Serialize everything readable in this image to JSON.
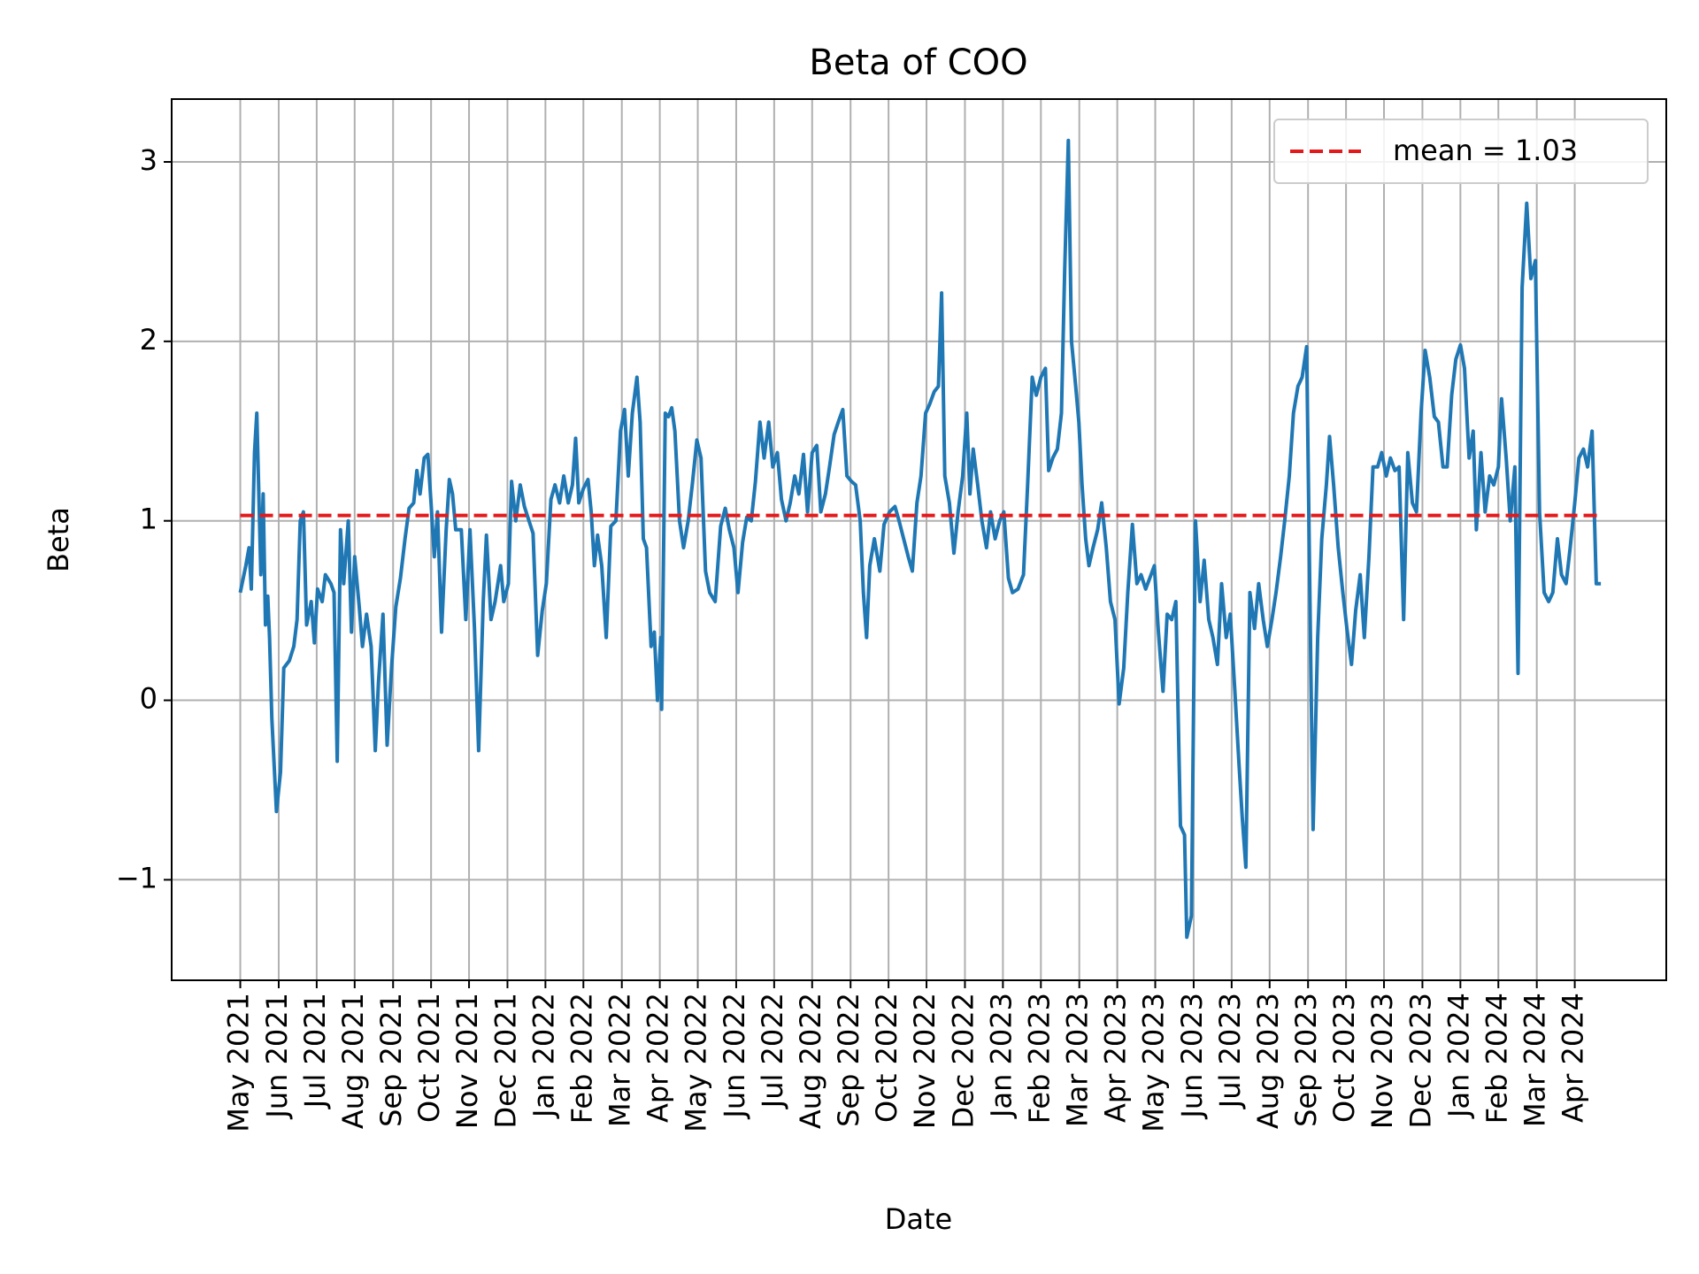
{
  "chart_data": {
    "type": "line",
    "title": "Beta of COO",
    "x_label": "Date",
    "y_label": "Beta",
    "color": "#1f77b4",
    "grid": true,
    "legend": "upper right",
    "x": [
      2021.333,
      2021.345,
      2021.352,
      2021.357,
      2021.364,
      2021.369,
      2021.378,
      2021.383,
      2021.388,
      2021.393,
      2021.397,
      2021.402,
      2021.412,
      2021.421,
      2021.428,
      2021.44,
      2021.45,
      2021.457,
      2021.464,
      2021.471,
      2021.478,
      2021.488,
      2021.495,
      2021.502,
      2021.512,
      2021.519,
      2021.531,
      2021.538,
      2021.545,
      2021.552,
      2021.559,
      2021.569,
      2021.576,
      2021.583,
      2021.593,
      2021.6,
      2021.609,
      2021.619,
      2021.628,
      2021.635,
      2021.645,
      2021.654,
      2021.664,
      2021.673,
      2021.683,
      2021.693,
      2021.702,
      2021.712,
      2021.719,
      2021.726,
      2021.735,
      2021.743,
      2021.75,
      2021.757,
      2021.764,
      2021.773,
      2021.783,
      2021.79,
      2021.797,
      2021.804,
      2021.816,
      2021.826,
      2021.835,
      2021.845,
      2021.854,
      2021.864,
      2021.871,
      2021.881,
      2021.89,
      2021.902,
      2021.909,
      2021.919,
      2021.926,
      2021.935,
      2021.945,
      2021.954,
      2021.964,
      2021.973,
      2021.983,
      2021.993,
      2022.002,
      2022.012,
      2022.021,
      2022.031,
      2022.04,
      2022.05,
      2022.059,
      2022.066,
      2022.073,
      2022.083,
      2022.093,
      2022.1,
      2022.107,
      2022.114,
      2022.123,
      2022.133,
      2022.143,
      2022.154,
      2022.164,
      2022.173,
      2022.181,
      2022.19,
      2022.2,
      2022.207,
      2022.214,
      2022.221,
      2022.231,
      2022.238,
      2022.245,
      2022.252,
      2022.254,
      2022.262,
      2022.269,
      2022.276,
      2022.283,
      2022.293,
      2022.302,
      2022.312,
      2022.321,
      2022.331,
      2022.34,
      2022.35,
      2022.359,
      2022.371,
      2022.383,
      2022.393,
      2022.402,
      2022.412,
      2022.421,
      2022.431,
      2022.44,
      2022.45,
      2022.459,
      2022.469,
      2022.478,
      2022.488,
      2022.497,
      2022.507,
      2022.516,
      2022.526,
      2022.535,
      2022.545,
      2022.554,
      2022.564,
      2022.573,
      2022.583,
      2022.593,
      2022.602,
      2022.612,
      2022.621,
      2022.631,
      2022.64,
      2022.65,
      2022.659,
      2022.669,
      2022.678,
      2022.688,
      2022.695,
      2022.702,
      2022.709,
      2022.719,
      2022.731,
      2022.74,
      2022.752,
      2022.764,
      2022.773,
      2022.783,
      2022.793,
      2022.802,
      2022.812,
      2022.821,
      2022.831,
      2022.84,
      2022.85,
      2022.859,
      2022.866,
      2022.873,
      2022.883,
      2022.893,
      2022.902,
      2022.912,
      2022.921,
      2022.928,
      2022.935,
      2022.945,
      2022.954,
      2022.964,
      2022.973,
      2022.983,
      2022.993,
      2023.002,
      2023.012,
      2023.021,
      2023.033,
      2023.045,
      2023.054,
      2023.064,
      2023.073,
      2023.083,
      2023.093,
      2023.1,
      2023.109,
      2023.119,
      2023.128,
      2023.135,
      2023.143,
      2023.15,
      2023.159,
      2023.166,
      2023.173,
      2023.181,
      2023.188,
      2023.197,
      2023.207,
      2023.216,
      2023.226,
      2023.235,
      2023.245,
      2023.254,
      2023.264,
      2023.273,
      2023.283,
      2023.293,
      2023.302,
      2023.312,
      2023.321,
      2023.331,
      2023.34,
      2023.35,
      2023.359,
      2023.369,
      2023.378,
      2023.388,
      2023.397,
      2023.402,
      2023.412,
      2023.421,
      2023.431,
      2023.44,
      2023.45,
      2023.459,
      2023.469,
      2023.478,
      2023.488,
      2023.497,
      2023.507,
      2023.516,
      2023.523,
      2023.531,
      2023.54,
      2023.55,
      2023.559,
      2023.569,
      2023.578,
      2023.588,
      2023.597,
      2023.607,
      2023.616,
      2023.626,
      2023.635,
      2023.645,
      2023.654,
      2023.664,
      2023.673,
      2023.678,
      2023.688,
      2023.697,
      2023.707,
      2023.714,
      2023.723,
      2023.733,
      2023.743,
      2023.752,
      2023.762,
      2023.771,
      2023.781,
      2023.79,
      2023.8,
      2023.809,
      2023.819,
      2023.828,
      2023.838,
      2023.847,
      2023.857,
      2023.866,
      2023.876,
      2023.885,
      2023.895,
      2023.904,
      2023.914,
      2023.923,
      2023.933,
      2023.943,
      2023.952,
      2023.962,
      2023.971,
      2023.981,
      2023.99,
      2024.0,
      2024.009,
      2024.019,
      2024.028,
      2024.035,
      2024.045,
      2024.054,
      2024.064,
      2024.073,
      2024.083,
      2024.09,
      2024.1,
      2024.109,
      2024.119,
      2024.126,
      2024.135,
      2024.145,
      2024.154,
      2024.164,
      2024.173,
      2024.183,
      2024.193,
      2024.202,
      2024.212,
      2024.221,
      2024.231,
      2024.24,
      2024.25,
      2024.259,
      2024.269,
      2024.278,
      2024.288,
      2024.297,
      2024.307
    ],
    "values": [
      0.6,
      0.75,
      0.85,
      0.62,
      1.38,
      1.6,
      0.7,
      1.15,
      0.42,
      0.58,
      0.35,
      -0.1,
      -0.62,
      -0.4,
      0.18,
      0.22,
      0.3,
      0.45,
      1.0,
      1.05,
      0.42,
      0.55,
      0.32,
      0.62,
      0.55,
      0.7,
      0.65,
      0.6,
      -0.34,
      0.95,
      0.65,
      1.0,
      0.38,
      0.8,
      0.52,
      0.3,
      0.48,
      0.3,
      -0.28,
      0.1,
      0.48,
      -0.25,
      0.2,
      0.52,
      0.68,
      0.9,
      1.07,
      1.1,
      1.28,
      1.15,
      1.35,
      1.37,
      1.1,
      0.8,
      1.05,
      0.38,
      0.95,
      1.23,
      1.15,
      0.95,
      0.95,
      0.45,
      0.95,
      0.4,
      -0.28,
      0.55,
      0.92,
      0.45,
      0.55,
      0.75,
      0.55,
      0.65,
      1.22,
      1.0,
      1.2,
      1.08,
      1.0,
      0.93,
      0.25,
      0.5,
      0.65,
      1.12,
      1.2,
      1.1,
      1.25,
      1.1,
      1.2,
      1.46,
      1.1,
      1.18,
      1.23,
      1.05,
      0.75,
      0.92,
      0.75,
      0.35,
      0.97,
      1.0,
      1.5,
      1.62,
      1.25,
      1.6,
      1.8,
      1.55,
      0.9,
      0.85,
      0.3,
      0.38,
      0.0,
      0.35,
      -0.05,
      1.6,
      1.58,
      1.63,
      1.5,
      1.0,
      0.85,
      1.0,
      1.2,
      1.45,
      1.35,
      0.72,
      0.6,
      0.55,
      0.97,
      1.07,
      0.95,
      0.85,
      0.6,
      0.88,
      1.02,
      1.0,
      1.22,
      1.55,
      1.35,
      1.55,
      1.3,
      1.38,
      1.12,
      1.0,
      1.1,
      1.25,
      1.15,
      1.37,
      1.05,
      1.38,
      1.42,
      1.05,
      1.15,
      1.3,
      1.48,
      1.55,
      1.62,
      1.25,
      1.22,
      1.2,
      1.0,
      0.6,
      0.35,
      0.75,
      0.9,
      0.72,
      0.98,
      1.05,
      1.08,
      1.0,
      0.9,
      0.8,
      0.72,
      1.1,
      1.25,
      1.6,
      1.65,
      1.72,
      1.75,
      2.27,
      1.25,
      1.1,
      0.82,
      1.05,
      1.25,
      1.6,
      1.15,
      1.4,
      1.2,
      1.0,
      0.85,
      1.05,
      0.9,
      1.0,
      1.05,
      0.68,
      0.6,
      0.62,
      0.7,
      1.2,
      1.8,
      1.7,
      1.8,
      1.85,
      1.28,
      1.35,
      1.4,
      1.6,
      2.4,
      3.12,
      2.0,
      1.75,
      1.55,
      1.2,
      0.9,
      0.75,
      0.85,
      0.95,
      1.1,
      0.85,
      0.55,
      0.45,
      -0.02,
      0.18,
      0.6,
      0.98,
      0.65,
      0.7,
      0.62,
      0.68,
      0.75,
      0.38,
      0.05,
      0.48,
      0.45,
      0.55,
      -0.7,
      -0.75,
      -1.32,
      -1.2,
      1.0,
      0.55,
      0.78,
      0.45,
      0.35,
      0.2,
      0.65,
      0.35,
      0.48,
      0.05,
      -0.35,
      -0.65,
      -0.93,
      0.6,
      0.4,
      0.65,
      0.45,
      0.3,
      0.45,
      0.6,
      0.8,
      1.0,
      1.25,
      1.6,
      1.75,
      1.8,
      1.97,
      0.2,
      -0.72,
      0.35,
      0.9,
      1.2,
      1.47,
      1.2,
      0.85,
      0.6,
      0.4,
      0.2,
      0.5,
      0.7,
      0.35,
      0.8,
      1.3,
      1.3,
      1.38,
      1.25,
      1.35,
      1.28,
      1.3,
      0.45,
      1.38,
      1.1,
      1.05,
      1.6,
      1.95,
      1.8,
      1.58,
      1.55,
      1.3,
      1.3,
      1.7,
      1.9,
      1.98,
      1.85,
      1.35,
      1.5,
      0.95,
      1.38,
      1.05,
      1.25,
      1.2,
      1.3,
      1.68,
      1.35,
      1.0,
      1.3,
      0.15,
      2.3,
      2.77,
      2.35,
      2.45,
      1.05,
      0.6,
      0.55,
      0.6,
      0.9,
      0.7,
      0.65,
      0.85,
      1.1,
      1.35,
      1.4,
      1.3,
      1.5,
      0.65,
      0.65
    ],
    "mean_line": {
      "name": "mean = 1.03",
      "value": 1.03,
      "color": "#e31a1c"
    },
    "xlim": [
      2021.183,
      2024.45
    ],
    "ylim": [
      -1.56,
      3.35
    ],
    "yticks": [
      {
        "value": -1,
        "label": "−1"
      },
      0,
      1,
      2,
      3
    ],
    "xticks": [
      {
        "value": 2021.333,
        "label": "May 2021"
      },
      {
        "value": 2021.417,
        "label": "Jun 2021"
      },
      {
        "value": 2021.5,
        "label": "Jul 2021"
      },
      {
        "value": 2021.583,
        "label": "Aug 2021"
      },
      {
        "value": 2021.667,
        "label": "Sep 2021"
      },
      {
        "value": 2021.75,
        "label": "Oct 2021"
      },
      {
        "value": 2021.833,
        "label": "Nov 2021"
      },
      {
        "value": 2021.917,
        "label": "Dec 2021"
      },
      {
        "value": 2022.0,
        "label": "Jan 2022"
      },
      {
        "value": 2022.083,
        "label": "Feb 2022"
      },
      {
        "value": 2022.167,
        "label": "Mar 2022"
      },
      {
        "value": 2022.25,
        "label": "Apr 2022"
      },
      {
        "value": 2022.333,
        "label": "May 2022"
      },
      {
        "value": 2022.417,
        "label": "Jun 2022"
      },
      {
        "value": 2022.5,
        "label": "Jul 2022"
      },
      {
        "value": 2022.583,
        "label": "Aug 2022"
      },
      {
        "value": 2022.667,
        "label": "Sep 2022"
      },
      {
        "value": 2022.75,
        "label": "Oct 2022"
      },
      {
        "value": 2022.833,
        "label": "Nov 2022"
      },
      {
        "value": 2022.917,
        "label": "Dec 2022"
      },
      {
        "value": 2023.0,
        "label": "Jan 2023"
      },
      {
        "value": 2023.083,
        "label": "Feb 2023"
      },
      {
        "value": 2023.167,
        "label": "Mar 2023"
      },
      {
        "value": 2023.25,
        "label": "Apr 2023"
      },
      {
        "value": 2023.333,
        "label": "May 2023"
      },
      {
        "value": 2023.417,
        "label": "Jun 2023"
      },
      {
        "value": 2023.5,
        "label": "Jul 2023"
      },
      {
        "value": 2023.583,
        "label": "Aug 2023"
      },
      {
        "value": 2023.667,
        "label": "Sep 2023"
      },
      {
        "value": 2023.75,
        "label": "Oct 2023"
      },
      {
        "value": 2023.833,
        "label": "Nov 2023"
      },
      {
        "value": 2023.917,
        "label": "Dec 2023"
      },
      {
        "value": 2024.0,
        "label": "Jan 2024"
      },
      {
        "value": 2024.083,
        "label": "Feb 2024"
      },
      {
        "value": 2024.167,
        "label": "Mar 2024"
      },
      {
        "value": 2024.25,
        "label": "Apr 2024"
      }
    ]
  }
}
